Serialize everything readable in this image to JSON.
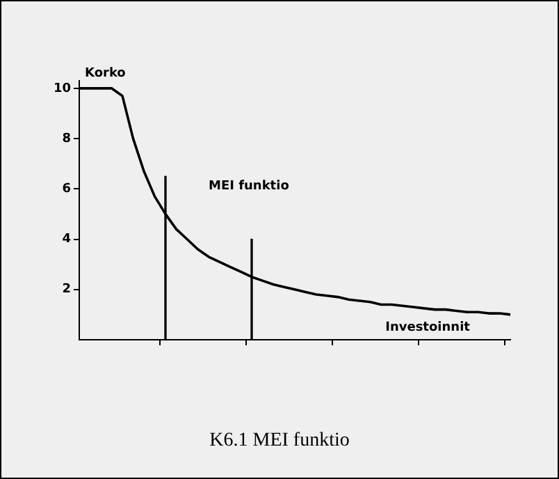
{
  "chart_data": {
    "type": "line",
    "title": "K6.1 MEI funktio",
    "xlabel": "Investoinnit",
    "ylabel": "Korko",
    "categories": [
      null,
      null,
      null,
      null,
      null,
      null,
      null,
      null,
      null,
      null,
      null,
      null,
      null,
      null,
      null,
      null,
      null,
      null,
      null,
      null,
      null,
      null,
      null,
      null,
      null,
      null,
      null,
      null,
      null,
      null,
      null,
      null,
      null,
      null,
      null,
      null,
      null,
      null,
      null,
      null,
      null
    ],
    "ylim": [
      0,
      10.3
    ],
    "yticks": [
      2,
      4,
      6,
      8,
      10
    ],
    "tick_labels": "y",
    "legend": false,
    "marker": "none",
    "line_style": "solid",
    "series": [
      {
        "name": "MEI funktio",
        "color": "#000000",
        "values": [
          10,
          10,
          10,
          10,
          9.7,
          8,
          6.7,
          5.7,
          5,
          4.4,
          4,
          3.6,
          3.3,
          3.1,
          2.9,
          2.7,
          2.5,
          2.35,
          2.2,
          2.1,
          2,
          1.9,
          1.8,
          1.75,
          1.7,
          1.6,
          1.55,
          1.5,
          1.4,
          1.4,
          1.35,
          1.3,
          1.25,
          1.2,
          1.2,
          1.15,
          1.1,
          1.1,
          1.05,
          1.05,
          1
        ]
      },
      {
        "type": "bar",
        "color": "#000000",
        "values": [
          null,
          null,
          null,
          null,
          null,
          null,
          null,
          null,
          6.5,
          null,
          null,
          null,
          null,
          null,
          null,
          null,
          4,
          null,
          null,
          null,
          null,
          null,
          null,
          null,
          null,
          null,
          null,
          null,
          null,
          null,
          null,
          null,
          null,
          null,
          null,
          null,
          null,
          null,
          null,
          null,
          null
        ]
      }
    ]
  }
}
